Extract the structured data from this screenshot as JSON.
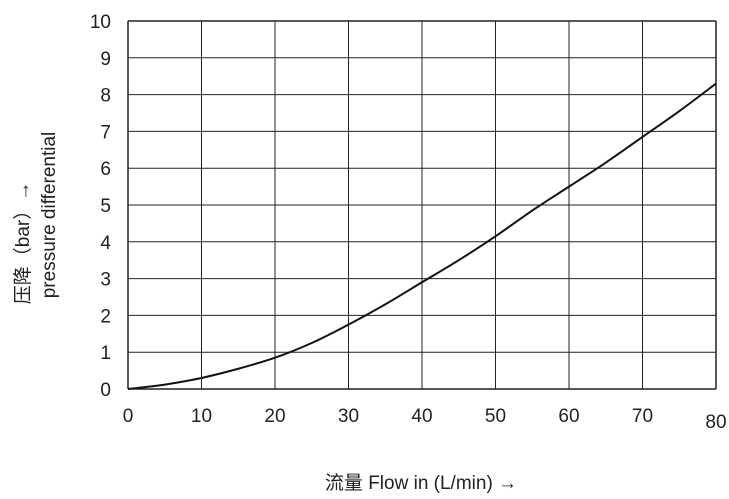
{
  "chart_data": {
    "type": "line",
    "xlabel": "流量  Flow in (L/min) →",
    "ylabel_line1": "压降（bar）→",
    "ylabel_line2": "pressure differential",
    "xlim": [
      0,
      80
    ],
    "ylim": [
      0,
      10
    ],
    "x_ticks": [
      0,
      10,
      20,
      30,
      40,
      50,
      60,
      70,
      80
    ],
    "y_ticks": [
      0,
      1,
      2,
      3,
      4,
      5,
      6,
      7,
      8,
      9,
      10
    ],
    "grid": true,
    "series": [
      {
        "x": [
          0,
          5,
          10,
          15,
          20,
          25,
          30,
          35,
          40,
          45,
          50,
          55,
          60,
          65,
          70,
          75,
          80
        ],
        "y": [
          0,
          0.12,
          0.3,
          0.55,
          0.85,
          1.25,
          1.75,
          2.3,
          2.9,
          3.5,
          4.15,
          4.85,
          5.5,
          6.15,
          6.85,
          7.55,
          8.3
        ]
      }
    ],
    "colors": {
      "line": "#111111",
      "grid": "#222222",
      "text": "#222222"
    }
  }
}
